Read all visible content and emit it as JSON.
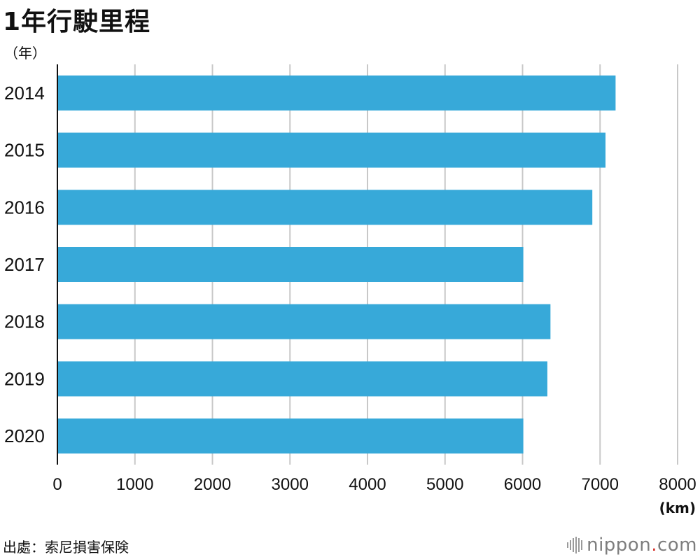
{
  "title": "1年行駛里程",
  "y_unit": "（年）",
  "x_unit": "(km)",
  "source": "出處：索尼損害保険",
  "logo": {
    "name": "nippon",
    "dot": ".",
    "tld": "com"
  },
  "colors": {
    "bar": "#37a9d9",
    "grid": "#c8c8c8",
    "axis": "#111111"
  },
  "chart_data": {
    "type": "bar",
    "orientation": "horizontal",
    "categories": [
      "2014",
      "2015",
      "2016",
      "2017",
      "2018",
      "2019",
      "2020"
    ],
    "values": [
      7200,
      7070,
      6900,
      6010,
      6360,
      6320,
      6010
    ],
    "xlim": [
      0,
      8000
    ],
    "xticks": [
      "0",
      "1000",
      "2000",
      "3000",
      "4000",
      "5000",
      "6000",
      "7000",
      "8000"
    ],
    "grid": true
  }
}
